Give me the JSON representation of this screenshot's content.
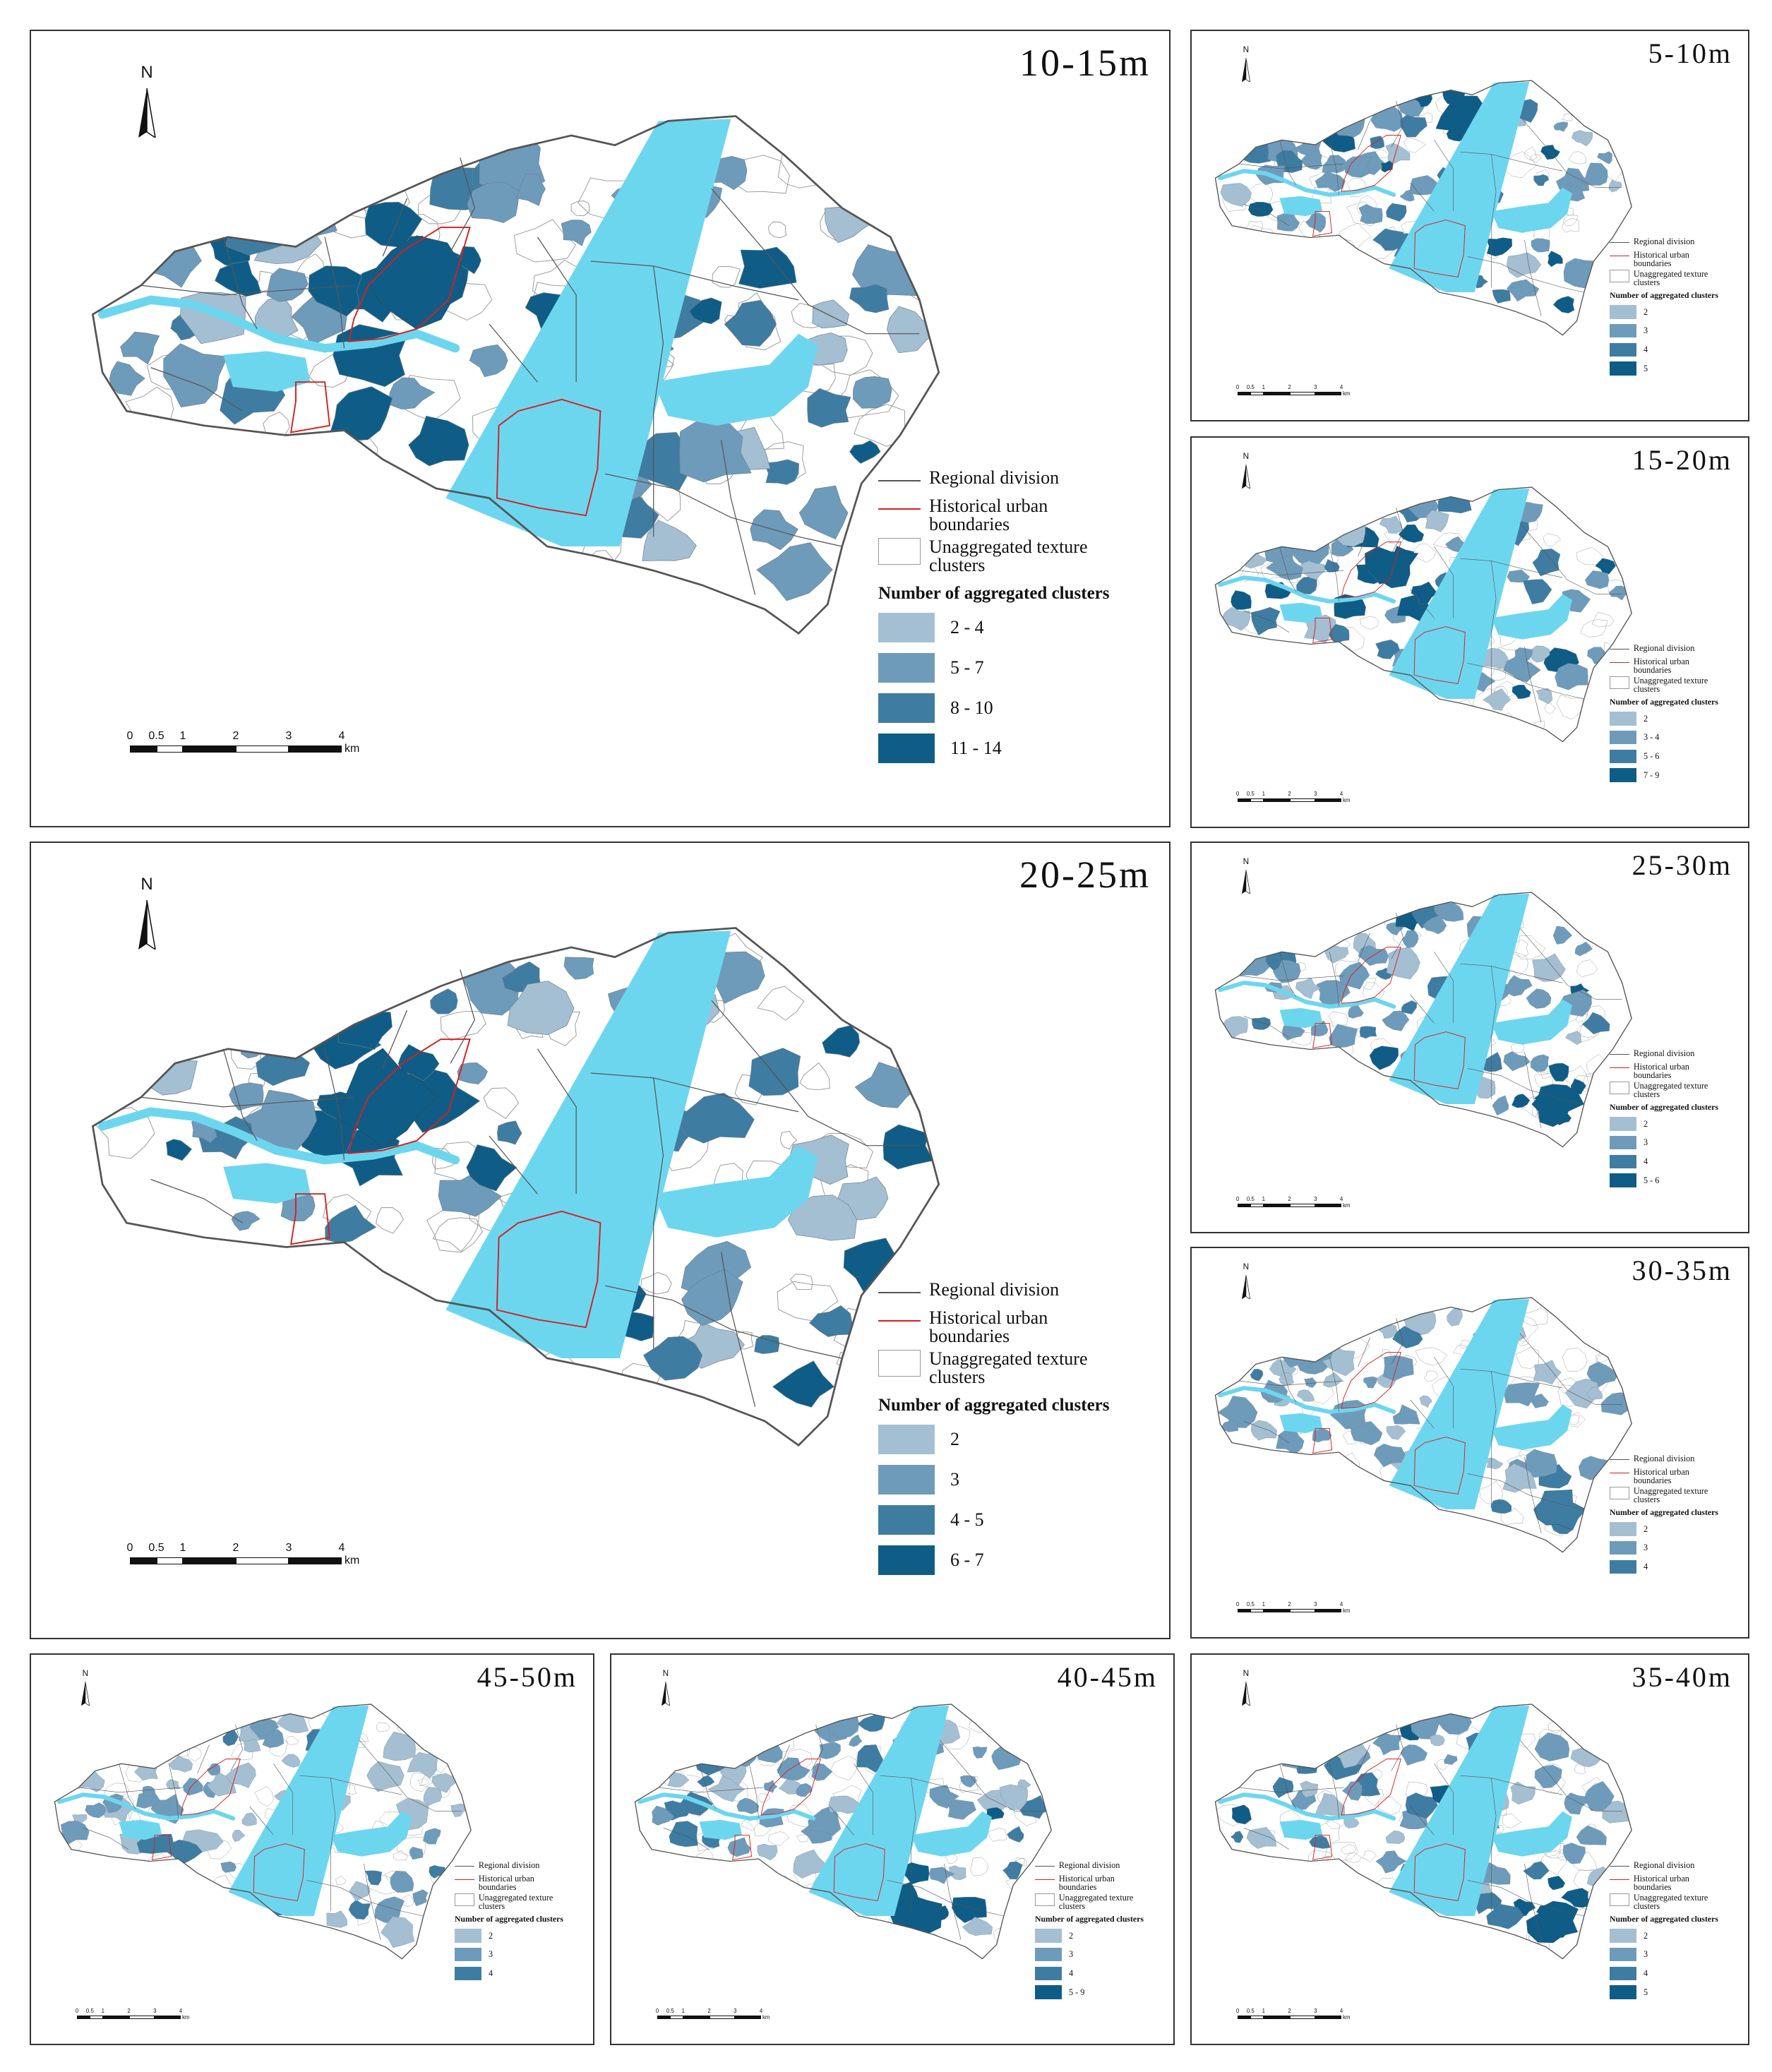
{
  "colors": {
    "water": "#6dd6ef",
    "region_line": "#555555",
    "historic_line": "#d42020",
    "texture_line": "#9a9a9a",
    "class1": "#a4bfd2",
    "class2": "#6f9bbb",
    "class3": "#3f7ca2",
    "class4": "#0f5d86"
  },
  "common": {
    "north_label": "N",
    "legend_regional": "Regional division",
    "legend_historic": "Historical urban boundaries",
    "legend_unaggregated": "Unaggregated texture clusters",
    "legend_heading": "Number of aggregated clusters",
    "scale_ticks": [
      "0",
      "0.5",
      "1",
      "2",
      "3",
      "4"
    ],
    "scale_unit": "km"
  },
  "panels": [
    {
      "id": "p1015",
      "title": "10-15m",
      "classes": [
        "2 - 4",
        "5 - 7",
        "8 - 10",
        "11 - 14"
      ]
    },
    {
      "id": "p0510",
      "title": "5-10m",
      "classes": [
        "2",
        "3",
        "4",
        "5"
      ]
    },
    {
      "id": "p1520",
      "title": "15-20m",
      "classes": [
        "2",
        "3 - 4",
        "5 - 6",
        "7 - 9"
      ]
    },
    {
      "id": "p2025",
      "title": "20-25m",
      "classes": [
        "2",
        "3",
        "4 - 5",
        "6 - 7"
      ]
    },
    {
      "id": "p2530",
      "title": "25-30m",
      "classes": [
        "2",
        "3",
        "4",
        "5 - 6"
      ]
    },
    {
      "id": "p3035",
      "title": "30-35m",
      "classes": [
        "2",
        "3",
        "4"
      ]
    },
    {
      "id": "p4550",
      "title": "45-50m",
      "classes": [
        "2",
        "3",
        "4"
      ]
    },
    {
      "id": "p4045",
      "title": "40-45m",
      "classes": [
        "2",
        "3",
        "4",
        "5 - 9"
      ]
    },
    {
      "id": "p3540",
      "title": "35-40m",
      "classes": [
        "2",
        "3",
        "4",
        "5"
      ]
    }
  ]
}
